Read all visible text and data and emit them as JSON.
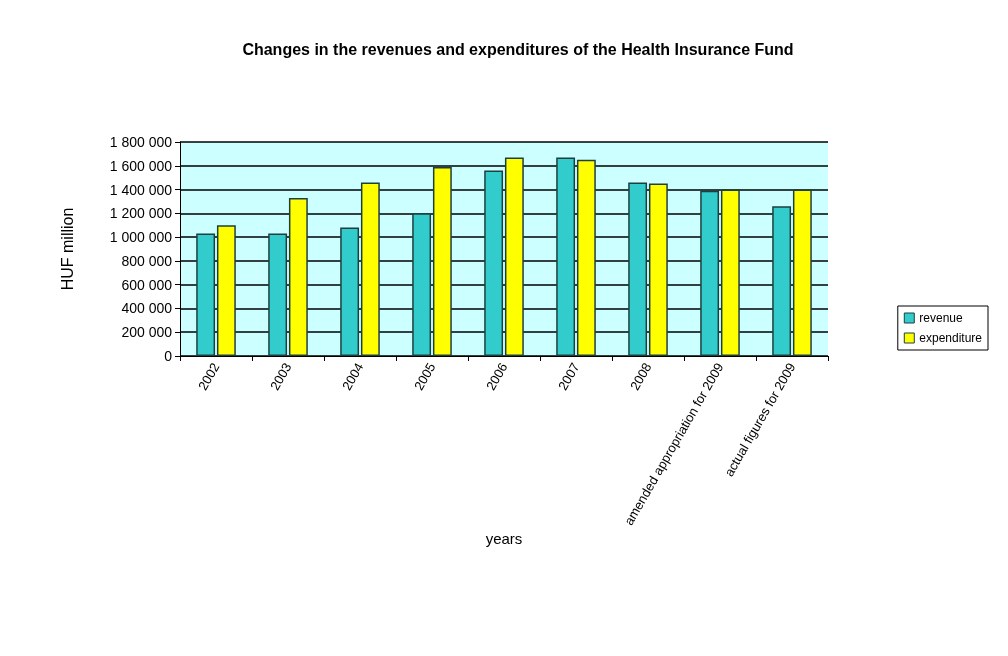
{
  "chart_data": {
    "type": "bar",
    "title": "Changes in the revenues and expenditures of the Health Insurance Fund",
    "xlabel": "years",
    "ylabel": "HUF million",
    "categories": [
      "2002",
      "2003",
      "2004",
      "2005",
      "2006",
      "2007",
      "2008",
      "amended appropriation for 2009",
      "actual figures for 2009"
    ],
    "series": [
      {
        "name": "revenue",
        "color": "#33cccc",
        "values": [
          1030000,
          1030000,
          1080000,
          1200000,
          1560000,
          1670000,
          1460000,
          1390000,
          1260000
        ]
      },
      {
        "name": "expenditure",
        "color": "#ffff00",
        "values": [
          1100000,
          1330000,
          1460000,
          1590000,
          1670000,
          1650000,
          1450000,
          1400000,
          1400000
        ]
      }
    ],
    "ylim": [
      0,
      1800000
    ],
    "yticks": [
      {
        "value": 0,
        "label": "0"
      },
      {
        "value": 200000,
        "label": "200 000"
      },
      {
        "value": 400000,
        "label": "400 000"
      },
      {
        "value": 600000,
        "label": "600 000"
      },
      {
        "value": 800000,
        "label": "800 000"
      },
      {
        "value": 1000000,
        "label": "1 000 000"
      },
      {
        "value": 1200000,
        "label": "1 200 000"
      },
      {
        "value": 1400000,
        "label": "1 400 000"
      },
      {
        "value": 1600000,
        "label": "1 600 000"
      },
      {
        "value": 1800000,
        "label": "1 800 000"
      }
    ],
    "grid": "y",
    "legend": "right"
  }
}
